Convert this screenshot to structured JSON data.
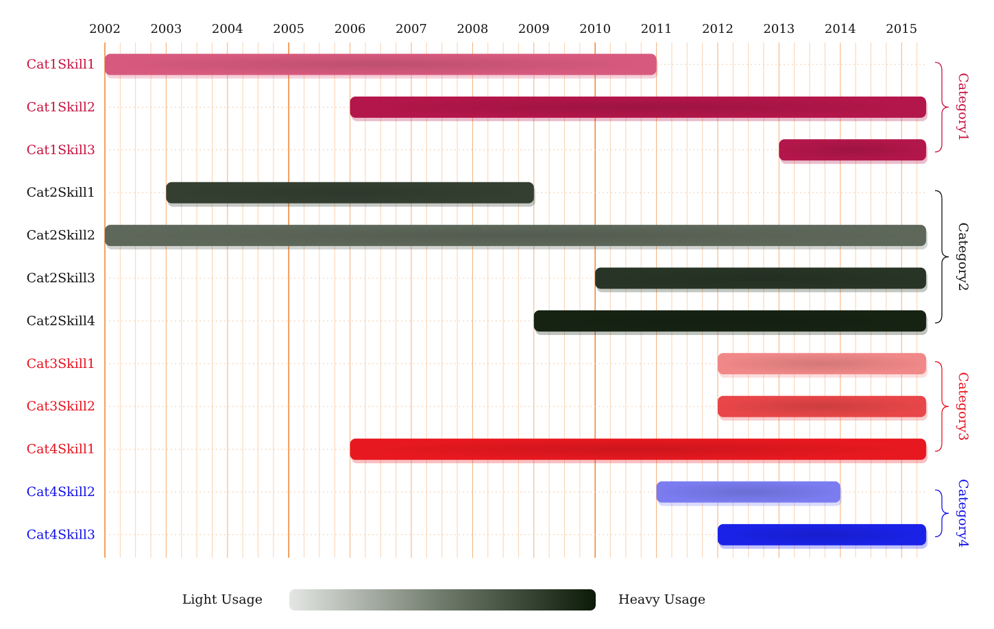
{
  "chart_data": {
    "type": "gantt",
    "xlim": [
      2002,
      2015.4
    ],
    "years": [
      "2002",
      "2003",
      "2004",
      "2005",
      "2006",
      "2007",
      "2008",
      "2009",
      "2010",
      "2011",
      "2012",
      "2013",
      "2014",
      "2015"
    ],
    "major_years": [
      2002,
      2005,
      2010
    ],
    "minor_ticks_per_year": 4,
    "grid": true,
    "rows": [
      {
        "label": "Cat1Skill1",
        "start": 2002,
        "end": 2011,
        "usage": 0.45,
        "color": "#d75a7e",
        "label_color": "#c8103e"
      },
      {
        "label": "Cat1Skill2",
        "start": 2006,
        "end": 2015.4,
        "usage": 0.9,
        "color": "#b3164a",
        "label_color": "#c8103e"
      },
      {
        "label": "Cat1Skill3",
        "start": 2013,
        "end": 2015.4,
        "usage": 0.9,
        "color": "#b3164a",
        "label_color": "#c8103e"
      },
      {
        "label": "Cat2Skill1",
        "start": 2003,
        "end": 2009,
        "usage": 0.8,
        "color": "#343f31",
        "label_color": "#111111"
      },
      {
        "label": "Cat2Skill2",
        "start": 2002,
        "end": 2015.4,
        "usage": 0.55,
        "color": "#5e685a",
        "label_color": "#111111"
      },
      {
        "label": "Cat2Skill3",
        "start": 2010,
        "end": 2015.4,
        "usage": 0.85,
        "color": "#283526",
        "label_color": "#111111"
      },
      {
        "label": "Cat2Skill4",
        "start": 2009,
        "end": 2015.4,
        "usage": 1.0,
        "color": "#162313",
        "label_color": "#111111"
      },
      {
        "label": "Cat3Skill1",
        "start": 2012,
        "end": 2015.4,
        "usage": 0.35,
        "color": "#f08888",
        "label_color": "#e8101c"
      },
      {
        "label": "Cat3Skill2",
        "start": 2012,
        "end": 2015.4,
        "usage": 0.65,
        "color": "#e84648",
        "label_color": "#e8101c"
      },
      {
        "label": "Cat4Skill1",
        "start": 2006,
        "end": 2015.4,
        "usage": 0.95,
        "color": "#e81820",
        "label_color": "#e8101c"
      },
      {
        "label": "Cat4Skill2",
        "start": 2011,
        "end": 2014,
        "usage": 0.45,
        "color": "#7a7cf0",
        "label_color": "#1010e8"
      },
      {
        "label": "Cat4Skill3",
        "start": 2012,
        "end": 2015.4,
        "usage": 0.95,
        "color": "#1a22e8",
        "label_color": "#1010e8"
      }
    ],
    "categories": [
      {
        "label": "Category1",
        "first_row": 0,
        "last_row": 2,
        "color": "#c8103e"
      },
      {
        "label": "Category2",
        "first_row": 3,
        "last_row": 6,
        "color": "#111111"
      },
      {
        "label": "Category3",
        "first_row": 7,
        "last_row": 9,
        "color": "#e8101c"
      },
      {
        "label": "Category4",
        "first_row": 10,
        "last_row": 11,
        "color": "#1010e8"
      }
    ],
    "legend": {
      "light_label": "Light Usage",
      "heavy_label": "Heavy Usage",
      "light_color": "#e4e6e3",
      "mid_color": "#6f7a6b",
      "heavy_color": "#0c1a08"
    },
    "grid_major_color": "#f08a3c",
    "grid_minor_color": "#f9d2b0"
  }
}
